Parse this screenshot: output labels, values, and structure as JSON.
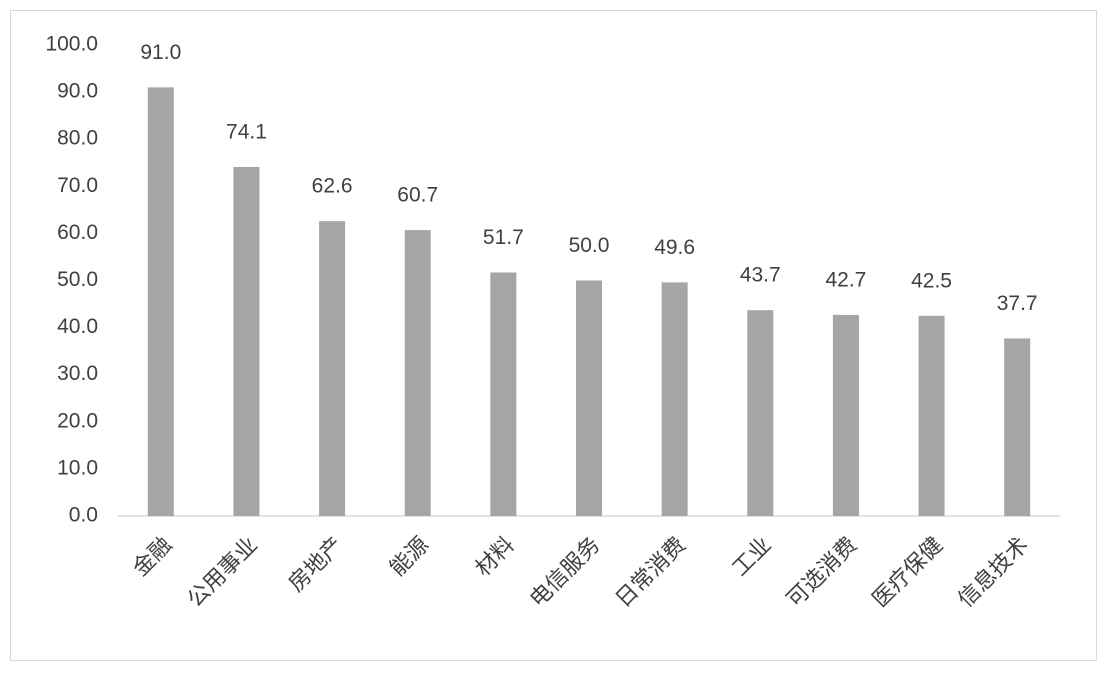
{
  "chart_data": {
    "type": "bar",
    "categories": [
      "金融",
      "公用事业",
      "房地产",
      "能源",
      "材料",
      "电信服务",
      "日常消费",
      "工业",
      "可选消费",
      "医疗保健",
      "信息技术"
    ],
    "values": [
      91.0,
      74.1,
      62.6,
      60.7,
      51.7,
      50.0,
      49.6,
      43.7,
      42.7,
      42.5,
      37.7
    ],
    "value_labels": [
      "91.0",
      "74.1",
      "62.6",
      "60.7",
      "51.7",
      "50.0",
      "49.6",
      "43.7",
      "42.7",
      "42.5",
      "37.7"
    ],
    "color": "#a5a5a5",
    "ylim": [
      0,
      100
    ],
    "yticks": [
      {
        "value": 0,
        "label": "0.0"
      },
      {
        "value": 10,
        "label": "10.0"
      },
      {
        "value": 20,
        "label": "20.0"
      },
      {
        "value": 30,
        "label": "30.0"
      },
      {
        "value": 40,
        "label": "40.0"
      },
      {
        "value": 50,
        "label": "50.0"
      },
      {
        "value": 60,
        "label": "60.0"
      },
      {
        "value": 70,
        "label": "70.0"
      },
      {
        "value": 80,
        "label": "80.0"
      },
      {
        "value": 90,
        "label": "90.0"
      },
      {
        "value": 100,
        "label": "100.0"
      }
    ],
    "grid": false
  }
}
